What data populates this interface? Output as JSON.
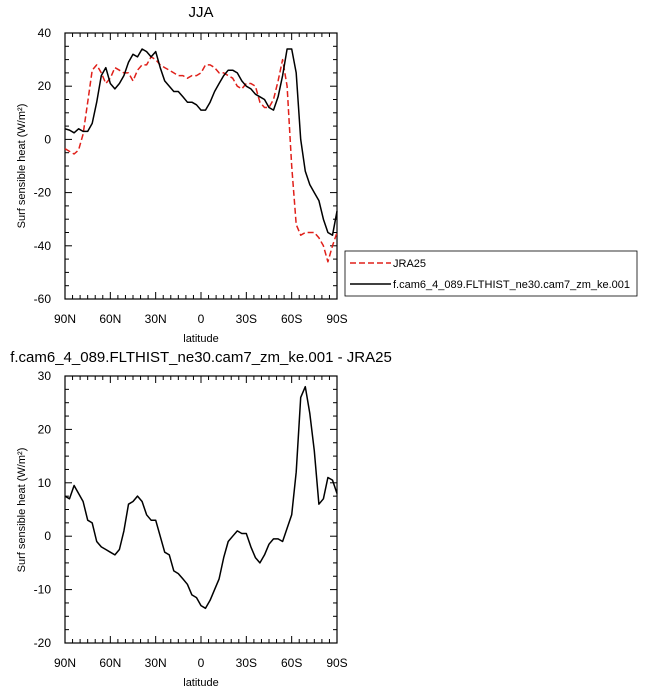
{
  "chart_data": [
    {
      "type": "line",
      "title": "JJA",
      "xlabel": "latitude",
      "ylabel": "Surf sensible heat (W/m²)",
      "xlim": [
        90,
        -90
      ],
      "ylim": [
        -60,
        40
      ],
      "xticks": [
        {
          "value": 90,
          "label": "90N"
        },
        {
          "value": 60,
          "label": "60N"
        },
        {
          "value": 30,
          "label": "30N"
        },
        {
          "value": 0,
          "label": "0"
        },
        {
          "value": -30,
          "label": "30S"
        },
        {
          "value": -60,
          "label": "60S"
        },
        {
          "value": -90,
          "label": "90S"
        }
      ],
      "yticks": [
        {
          "value": 40,
          "label": "40"
        },
        {
          "value": 20,
          "label": "20"
        },
        {
          "value": 0,
          "label": "0"
        },
        {
          "value": -20,
          "label": "-20"
        },
        {
          "value": -40,
          "label": "-40"
        },
        {
          "value": -60,
          "label": "-60"
        }
      ],
      "legend_position": "right",
      "series": [
        {
          "name": "JRA25",
          "color": "#e0201a",
          "style": "dashed",
          "x": [
            90,
            87,
            84,
            81,
            78,
            75,
            72,
            69,
            66,
            63,
            60,
            57,
            54,
            51,
            48,
            45,
            42,
            39,
            36,
            33,
            30,
            27,
            24,
            21,
            18,
            15,
            12,
            9,
            6,
            3,
            0,
            -3,
            -6,
            -9,
            -12,
            -15,
            -18,
            -21,
            -24,
            -27,
            -30,
            -33,
            -36,
            -39,
            -42,
            -45,
            -48,
            -51,
            -54,
            -57,
            -60,
            -63,
            -66,
            -69,
            -72,
            -75,
            -78,
            -81,
            -84,
            -87,
            -90
          ],
          "y": [
            -3.5,
            -4.5,
            -5.5,
            -4,
            2,
            14,
            26,
            28,
            25,
            21,
            23,
            27,
            26,
            25,
            25,
            22,
            26,
            28,
            28,
            31,
            30,
            28,
            27,
            26,
            25,
            24,
            24,
            23,
            24,
            24,
            25,
            28,
            28,
            27,
            25,
            25,
            24,
            23,
            20,
            19,
            21,
            21,
            20,
            14,
            12,
            12,
            15,
            22,
            30,
            20,
            -10,
            -32,
            -36,
            -35,
            -35,
            -35,
            -37,
            -40,
            -46,
            -40,
            -35
          ]
        },
        {
          "name": "f.cam6_4_089.FLTHIST_ne30.cam7_zm_ke.001",
          "color": "#000000",
          "style": "solid",
          "x": [
            90,
            87,
            84,
            81,
            78,
            75,
            72,
            69,
            66,
            63,
            60,
            57,
            54,
            51,
            48,
            45,
            42,
            39,
            36,
            33,
            30,
            27,
            24,
            21,
            18,
            15,
            12,
            9,
            6,
            3,
            0,
            -3,
            -6,
            -9,
            -12,
            -15,
            -18,
            -21,
            -24,
            -27,
            -30,
            -33,
            -36,
            -39,
            -42,
            -45,
            -48,
            -51,
            -54,
            -57,
            -60,
            -63,
            -66,
            -69,
            -72,
            -75,
            -78,
            -81,
            -84,
            -87,
            -90
          ],
          "y": [
            4,
            3.5,
            2.5,
            4,
            3,
            3,
            6,
            14,
            24,
            27,
            21,
            19,
            21,
            24,
            29,
            32,
            31,
            34,
            33,
            31,
            33,
            27,
            22,
            20,
            18,
            18,
            16,
            14,
            14,
            13,
            11,
            11,
            14,
            18,
            21,
            24,
            26,
            26,
            25,
            22,
            20,
            19,
            17,
            16,
            15,
            12,
            11,
            16,
            24,
            34,
            34,
            25,
            0,
            -12,
            -17,
            -20,
            -23,
            -30,
            -35,
            -36,
            -27
          ]
        }
      ]
    },
    {
      "type": "line",
      "title": "f.cam6_4_089.FLTHIST_ne30.cam7_zm_ke.001 - JRA25",
      "xlabel": "latitude",
      "ylabel": "Surf sensible heat (W/m²)",
      "xlim": [
        90,
        -90
      ],
      "ylim": [
        -20,
        30
      ],
      "xticks": [
        {
          "value": 90,
          "label": "90N"
        },
        {
          "value": 60,
          "label": "60N"
        },
        {
          "value": 30,
          "label": "30N"
        },
        {
          "value": 0,
          "label": "0"
        },
        {
          "value": -30,
          "label": "30S"
        },
        {
          "value": -60,
          "label": "60S"
        },
        {
          "value": -90,
          "label": "90S"
        }
      ],
      "yticks": [
        {
          "value": 30,
          "label": "30"
        },
        {
          "value": 20,
          "label": "20"
        },
        {
          "value": 10,
          "label": "10"
        },
        {
          "value": 0,
          "label": "0"
        },
        {
          "value": -10,
          "label": "-10"
        },
        {
          "value": -20,
          "label": "-20"
        }
      ],
      "series": [
        {
          "color": "#000000",
          "style": "solid",
          "x": [
            90,
            87,
            84,
            81,
            78,
            75,
            72,
            69,
            66,
            63,
            60,
            57,
            54,
            51,
            48,
            45,
            42,
            39,
            36,
            33,
            30,
            27,
            24,
            21,
            18,
            15,
            12,
            9,
            6,
            3,
            0,
            -3,
            -6,
            -9,
            -12,
            -15,
            -18,
            -21,
            -24,
            -27,
            -30,
            -33,
            -36,
            -39,
            -42,
            -45,
            -48,
            -51,
            -54,
            -57,
            -60,
            -63,
            -66,
            -69,
            -72,
            -75,
            -78,
            -81,
            -84,
            -87,
            -90
          ],
          "y": [
            7.5,
            7,
            9.5,
            8,
            6.5,
            3,
            2.5,
            -1,
            -2,
            -2.5,
            -3,
            -3.5,
            -2.5,
            1,
            6,
            6.5,
            7.5,
            6.5,
            4,
            3,
            3,
            0,
            -3,
            -3.5,
            -6.5,
            -7,
            -8,
            -9,
            -11,
            -11.5,
            -13,
            -13.5,
            -12,
            -10,
            -8,
            -4,
            -1,
            0,
            1,
            0.5,
            0.5,
            -2,
            -4,
            -5,
            -3.5,
            -1.5,
            -0.5,
            -0.5,
            -1,
            1.5,
            4,
            12,
            26,
            28,
            23,
            16,
            6,
            7,
            11,
            10.5,
            8
          ]
        }
      ]
    }
  ]
}
